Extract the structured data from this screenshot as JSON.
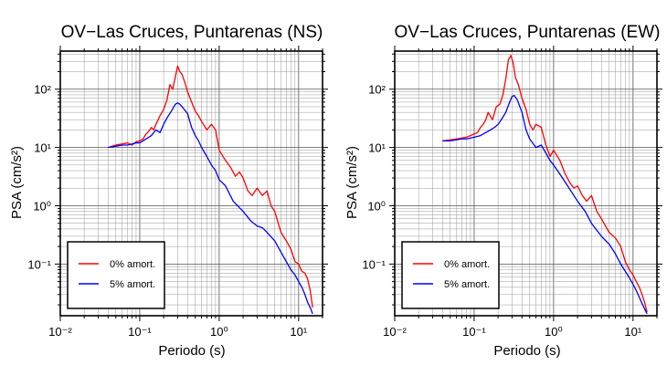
{
  "chart_data": [
    {
      "type": "line",
      "title": "OV−Las Cruces, Puntarenas (NS)",
      "xlabel": "Periodo (s)",
      "ylabel": "PSA (cm/s²)",
      "xscale": "log",
      "yscale": "log",
      "xlim": [
        0.01,
        20
      ],
      "ylim": [
        0.013,
        450
      ],
      "x_ticks": [
        0.01,
        0.1,
        1,
        10
      ],
      "x_tick_labels": [
        "10⁻²",
        "10⁻¹",
        "10⁰",
        "10¹"
      ],
      "y_ticks": [
        0.1,
        1,
        10,
        100
      ],
      "y_tick_labels": [
        "10⁻¹",
        "10⁰",
        "10¹",
        "10²"
      ],
      "grid": true,
      "legend": {
        "placement": "bottom-left"
      },
      "series": [
        {
          "name": "0% amort.",
          "color": "#ff0000",
          "x": [
            0.04,
            0.05,
            0.06,
            0.07,
            0.08,
            0.09,
            0.1,
            0.11,
            0.12,
            0.13,
            0.14,
            0.15,
            0.16,
            0.18,
            0.2,
            0.22,
            0.24,
            0.26,
            0.28,
            0.3,
            0.32,
            0.34,
            0.37,
            0.4,
            0.45,
            0.5,
            0.55,
            0.6,
            0.7,
            0.8,
            0.9,
            1.0,
            1.2,
            1.4,
            1.6,
            1.8,
            2.0,
            2.3,
            2.6,
            3.0,
            3.5,
            4.0,
            4.5,
            5.0,
            6.0,
            7.0,
            8.0,
            9.0,
            10.0,
            11.0,
            12.0,
            13.0,
            14.0,
            15.0
          ],
          "y": [
            10,
            11,
            11.5,
            12,
            11,
            12.5,
            13,
            14,
            17,
            19,
            22,
            20,
            25,
            35,
            45,
            65,
            120,
            100,
            160,
            250,
            200,
            180,
            130,
            90,
            60,
            42,
            35,
            28,
            20,
            25,
            20,
            9,
            6,
            4.5,
            3.2,
            3.8,
            3.0,
            1.8,
            1.5,
            2.0,
            1.5,
            1.8,
            1.0,
            0.8,
            0.35,
            0.25,
            0.18,
            0.11,
            0.1,
            0.075,
            0.07,
            0.055,
            0.035,
            0.018
          ]
        },
        {
          "name": "5% amort.",
          "color": "#0000ff",
          "x": [
            0.04,
            0.05,
            0.06,
            0.07,
            0.08,
            0.09,
            0.1,
            0.12,
            0.14,
            0.16,
            0.18,
            0.2,
            0.22,
            0.25,
            0.28,
            0.3,
            0.32,
            0.35,
            0.4,
            0.45,
            0.5,
            0.55,
            0.6,
            0.7,
            0.8,
            0.9,
            1.0,
            1.2,
            1.5,
            2.0,
            2.5,
            3.0,
            3.5,
            4.0,
            5.0,
            6.0,
            7.0,
            8.0,
            9.0,
            10.0,
            11.0,
            12.0,
            13.0,
            14.0,
            15.0
          ],
          "y": [
            10,
            10.5,
            11,
            11,
            11.5,
            12,
            12,
            14,
            16,
            20,
            18,
            25,
            32,
            42,
            55,
            58,
            55,
            48,
            38,
            22,
            16,
            13,
            10,
            7,
            5,
            4.0,
            2.8,
            2.2,
            1.2,
            0.8,
            0.55,
            0.45,
            0.42,
            0.35,
            0.25,
            0.16,
            0.11,
            0.08,
            0.065,
            0.05,
            0.04,
            0.03,
            0.022,
            0.018,
            0.014
          ]
        }
      ]
    },
    {
      "type": "line",
      "title": "OV−Las Cruces, Puntarenas (EW)",
      "xlabel": "Periodo (s)",
      "ylabel": "PSA (cm/s²)",
      "xscale": "log",
      "yscale": "log",
      "xlim": [
        0.01,
        20
      ],
      "ylim": [
        0.013,
        450
      ],
      "x_ticks": [
        0.01,
        0.1,
        1,
        10
      ],
      "x_tick_labels": [
        "10⁻²",
        "10⁻¹",
        "10⁰",
        "10¹"
      ],
      "y_ticks": [
        0.1,
        1,
        10,
        100
      ],
      "y_tick_labels": [
        "10⁻¹",
        "10⁰",
        "10¹",
        "10²"
      ],
      "grid": true,
      "legend": {
        "placement": "bottom-left"
      },
      "series": [
        {
          "name": "0% amort.",
          "color": "#ff0000",
          "x": [
            0.04,
            0.05,
            0.06,
            0.07,
            0.08,
            0.09,
            0.1,
            0.11,
            0.12,
            0.13,
            0.14,
            0.15,
            0.17,
            0.19,
            0.21,
            0.23,
            0.25,
            0.27,
            0.29,
            0.31,
            0.33,
            0.36,
            0.4,
            0.45,
            0.5,
            0.55,
            0.6,
            0.7,
            0.8,
            0.9,
            1.0,
            1.2,
            1.4,
            1.6,
            1.8,
            2.0,
            2.3,
            2.6,
            3.0,
            3.5,
            4.0,
            4.5,
            5.0,
            6.0,
            7.0,
            8.0,
            9.0,
            10.0,
            11.0,
            12.0,
            13.0,
            14.0,
            15.0
          ],
          "y": [
            13,
            13.5,
            14,
            14.5,
            15,
            16,
            17,
            18,
            22,
            25,
            30,
            40,
            30,
            50,
            55,
            80,
            150,
            320,
            380,
            280,
            160,
            120,
            70,
            45,
            25,
            20,
            25,
            22,
            11,
            7,
            9,
            6,
            3.5,
            2.5,
            2.0,
            2.2,
            1.5,
            1.2,
            1.5,
            0.8,
            0.6,
            0.45,
            0.35,
            0.28,
            0.2,
            0.11,
            0.08,
            0.065,
            0.05,
            0.04,
            0.03,
            0.022,
            0.015
          ]
        },
        {
          "name": "5% amort.",
          "color": "#0000ff",
          "x": [
            0.04,
            0.05,
            0.06,
            0.07,
            0.08,
            0.1,
            0.12,
            0.14,
            0.16,
            0.18,
            0.2,
            0.22,
            0.25,
            0.28,
            0.3,
            0.32,
            0.35,
            0.4,
            0.45,
            0.5,
            0.6,
            0.7,
            0.8,
            0.9,
            1.0,
            1.2,
            1.5,
            2.0,
            2.5,
            3.0,
            3.5,
            4.0,
            5.0,
            6.0,
            7.0,
            8.0,
            9.0,
            10.0,
            11.0,
            12.0,
            13.0,
            14.0,
            15.0
          ],
          "y": [
            13,
            13,
            13.5,
            14,
            14,
            15,
            16,
            18,
            20,
            22,
            25,
            30,
            40,
            60,
            75,
            78,
            65,
            40,
            20,
            14,
            10,
            11,
            8,
            6,
            5,
            3.5,
            2.2,
            1.2,
            0.8,
            0.5,
            0.38,
            0.3,
            0.22,
            0.15,
            0.1,
            0.075,
            0.058,
            0.045,
            0.035,
            0.027,
            0.021,
            0.017,
            0.014
          ]
        }
      ]
    }
  ]
}
